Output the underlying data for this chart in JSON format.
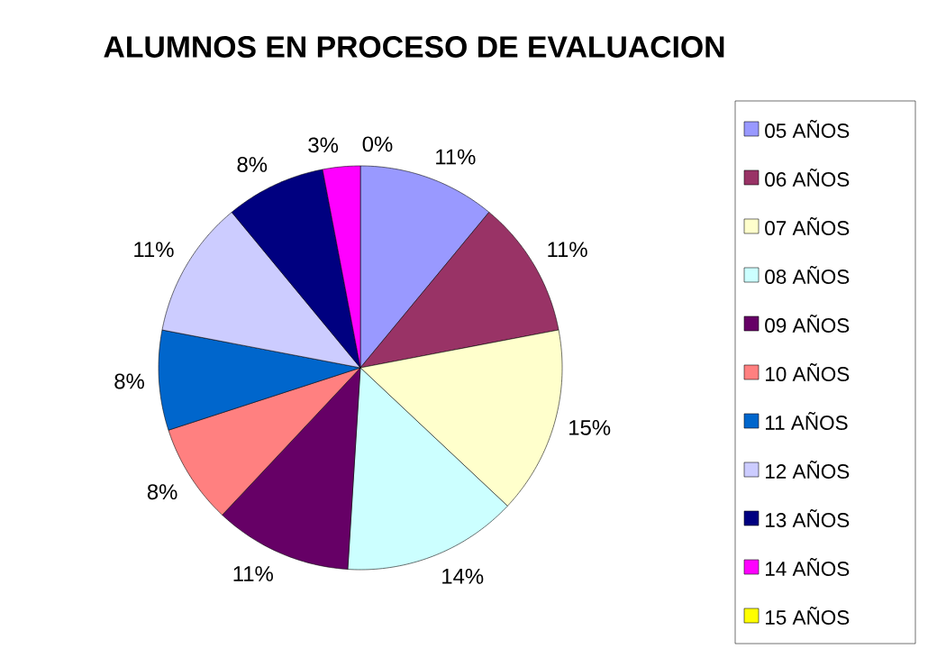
{
  "chart_data": {
    "type": "pie",
    "title": "ALUMNOS EN  PROCESO DE EVALUACION",
    "categories": [
      "05 AÑOS",
      "06 AÑOS",
      "07 AÑOS",
      "08 AÑOS",
      "09 AÑOS",
      "10 AÑOS",
      "11 AÑOS",
      "12 AÑOS",
      "13 AÑOS",
      "14 AÑOS",
      "15 AÑOS"
    ],
    "values": [
      11,
      11,
      15,
      14,
      11,
      8,
      8,
      11,
      8,
      3,
      0
    ],
    "value_labels": [
      "11%",
      "11%",
      "15%",
      "14%",
      "11%",
      "8%",
      "8%",
      "11%",
      "8%",
      "3%",
      "0%"
    ],
    "colors": [
      "#9999ff",
      "#993366",
      "#ffffcc",
      "#ccffff",
      "#660066",
      "#ff8080",
      "#0066cc",
      "#ccccff",
      "#000080",
      "#ff00ff",
      "#ffff00"
    ],
    "legend": "right"
  }
}
